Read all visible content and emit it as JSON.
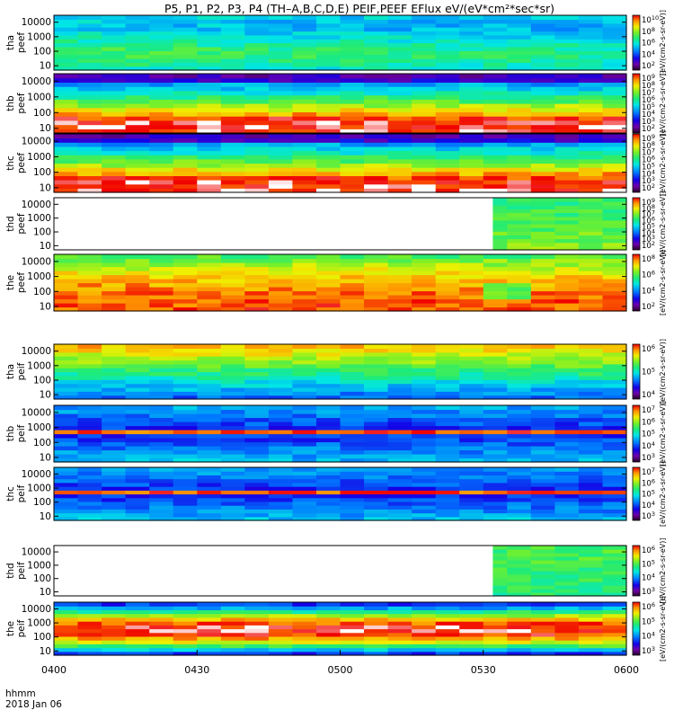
{
  "title": "P5, P1, P2, P3, P4 (TH–A,B,C,D,E) PEIF,PEEF EFlux eV/(eV*cm²*sec*sr)",
  "time_label": "hhmm",
  "date_label": "2018 Jan 06",
  "x_ticks": [
    "0400",
    "0430",
    "0500",
    "0530",
    "0600"
  ],
  "y_ticks": [
    "10000",
    "1000",
    "100",
    "10"
  ],
  "colorbar_unit": "[eV/(cm2-s-sr-eV)]",
  "colors": {
    "frame": "#000000",
    "background": "#ffffff",
    "fill": "#ffffff"
  },
  "chart_data": {
    "type": "heatmap",
    "x_range": [
      "0400",
      "0600"
    ],
    "y_scale": "log",
    "y_range": [
      5,
      30000
    ],
    "colormap": "rainbow (black-purple-blue-cyan-green-yellow-red-white)",
    "panels": [
      {
        "probe": "tha",
        "species": "peef",
        "ylabel": "tha\npeef",
        "data_start": "0400",
        "cbar_range": [
          1,
          10
        ],
        "cbar_ticks": [
          "10^10",
          "10^8",
          "10^6",
          "10^4",
          "10^2"
        ]
      },
      {
        "probe": "thb",
        "species": "peef",
        "ylabel": "thb\npeef",
        "data_start": "0400",
        "cbar_range": [
          2,
          9
        ],
        "cbar_ticks": [
          "10^9",
          "10^8",
          "10^7",
          "10^6",
          "10^5",
          "10^4",
          "10^3",
          "10^2"
        ]
      },
      {
        "probe": "thc",
        "species": "peef",
        "ylabel": "thc\npeef",
        "data_start": "0400",
        "cbar_range": [
          2,
          9
        ],
        "cbar_ticks": [
          "10^9",
          "10^8",
          "10^7",
          "10^6",
          "10^5",
          "10^4",
          "10^3",
          "10^2"
        ]
      },
      {
        "probe": "thd",
        "species": "peef",
        "ylabel": "thd\npeef",
        "data_start": "0532",
        "cbar_range": [
          1,
          9
        ],
        "cbar_ticks": [
          "10^9",
          "10^8",
          "10^7",
          "10^6",
          "10^5",
          "10^4",
          "10^3",
          "10^2"
        ]
      },
      {
        "probe": "the",
        "species": "peef",
        "ylabel": "the\npeef",
        "data_start": "0400",
        "cbar_range": [
          2,
          9
        ],
        "cbar_ticks": [
          "10^8",
          "10^6",
          "10^4",
          "10^2"
        ]
      },
      {
        "probe": "tha",
        "species": "peif",
        "ylabel": "tha\npeif",
        "data_start": "0400",
        "cbar_range": [
          3,
          7
        ],
        "cbar_ticks": [
          "10^6",
          "10^5",
          "10^4"
        ]
      },
      {
        "probe": "thb",
        "species": "peif",
        "ylabel": "thb\npeif",
        "data_start": "0400",
        "cbar_range": [
          3,
          7
        ],
        "cbar_ticks": [
          "10^7",
          "10^6",
          "10^5",
          "10^4",
          "10^3"
        ]
      },
      {
        "probe": "thc",
        "species": "peif",
        "ylabel": "thc\npeif",
        "data_start": "0400",
        "cbar_range": [
          3,
          7
        ],
        "cbar_ticks": [
          "10^7",
          "10^6",
          "10^5",
          "10^4",
          "10^3"
        ]
      },
      {
        "probe": "thd",
        "species": "peif",
        "ylabel": "thd\npeif",
        "data_start": "0532",
        "cbar_range": [
          2,
          7
        ],
        "cbar_ticks": [
          "10^6",
          "10^5",
          "10^4",
          "10^3"
        ]
      },
      {
        "probe": "the",
        "species": "peif",
        "ylabel": "the\npeif",
        "data_start": "0400",
        "cbar_range": [
          3,
          7
        ],
        "cbar_ticks": [
          "10^6",
          "10^5",
          "10^4",
          "10^3"
        ]
      }
    ]
  }
}
